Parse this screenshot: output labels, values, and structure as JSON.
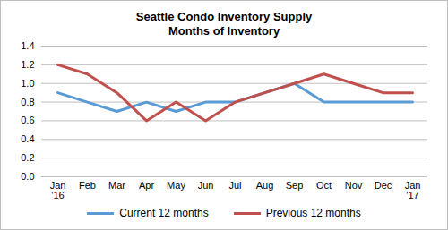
{
  "chart_data": {
    "type": "line",
    "title": "Seattle Condo Inventory Supply",
    "subtitle": "Months of Inventory",
    "categories": [
      "Jan\n'16",
      "Feb",
      "Mar",
      "Apr",
      "May",
      "Jun",
      "Jul",
      "Aug",
      "Sep",
      "Oct",
      "Nov",
      "Dec",
      "Jan\n'17"
    ],
    "series": [
      {
        "name": "Current 12 months",
        "color": "#5b9bd5",
        "values": [
          0.9,
          0.8,
          0.7,
          0.8,
          0.7,
          0.8,
          0.8,
          0.9,
          1.0,
          0.8,
          0.8,
          0.8,
          0.8
        ]
      },
      {
        "name": "Previous 12 months",
        "color": "#c0504d",
        "values": [
          1.2,
          1.1,
          0.9,
          0.6,
          0.8,
          0.6,
          0.8,
          0.9,
          1.0,
          1.1,
          1.0,
          0.9,
          0.9
        ]
      }
    ],
    "ylim": [
      0,
      1.4
    ],
    "yticks": [
      {
        "value": 0,
        "label": "0.0"
      },
      0.2,
      0.4,
      0.6,
      0.8,
      {
        "value": 1,
        "label": "1.0"
      },
      1.2,
      1.4
    ],
    "grid": true,
    "legend": "bottom"
  }
}
